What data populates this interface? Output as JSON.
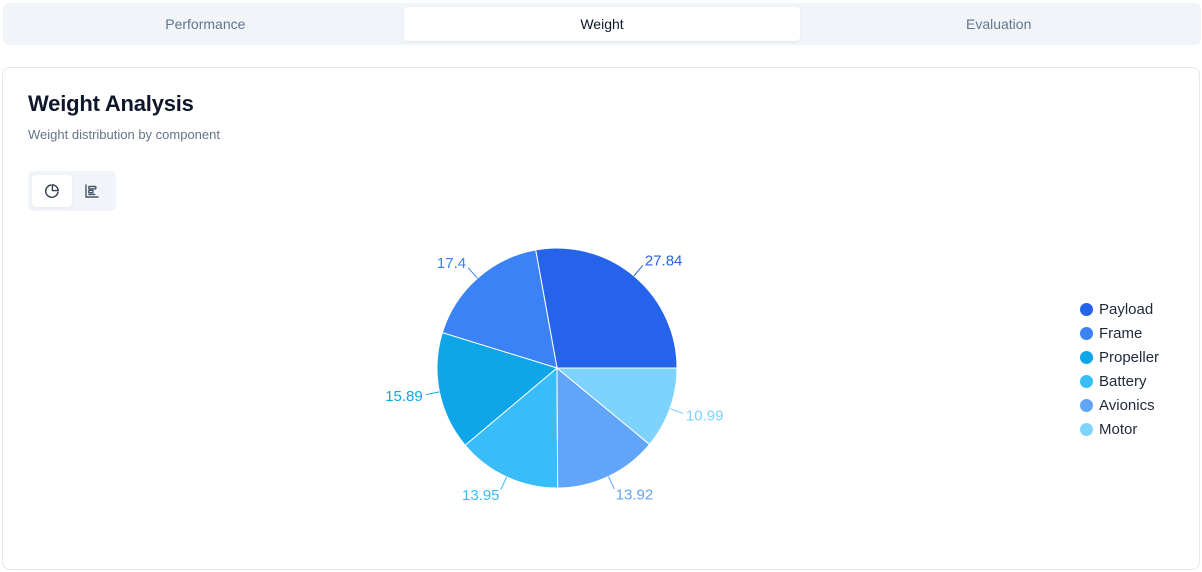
{
  "tabs": [
    {
      "label": "Performance",
      "active": false
    },
    {
      "label": "Weight",
      "active": true
    },
    {
      "label": "Evaluation",
      "active": false
    }
  ],
  "card": {
    "title": "Weight Analysis",
    "subtitle": "Weight distribution by component"
  },
  "view_toggle": {
    "options": [
      {
        "icon": "pie-chart-icon",
        "active": true
      },
      {
        "icon": "bar-chart-icon",
        "active": false
      }
    ]
  },
  "chart_data": {
    "type": "pie",
    "categories": [
      "Payload",
      "Frame",
      "Propeller",
      "Battery",
      "Avionics",
      "Motor"
    ],
    "values": [
      27.84,
      17.4,
      15.89,
      13.95,
      13.92,
      10.99
    ],
    "colors": [
      "#2563eb",
      "#3b82f6",
      "#0ea5e9",
      "#38bdf8",
      "#60a5fa",
      "#7dd3fc"
    ],
    "labels": [
      "27.84",
      "17.4",
      "15.89",
      "13.95",
      "13.92",
      "10.99"
    ],
    "legend_position": "right",
    "start_angle_deg": 0,
    "direction": "counterclockwise"
  }
}
